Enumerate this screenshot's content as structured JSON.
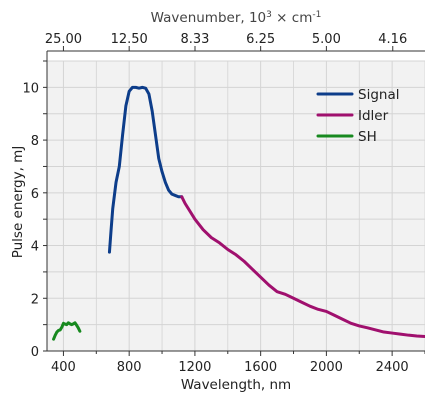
{
  "chart_data": {
    "type": "line",
    "xlabel": "Wavelength, nm",
    "ylabel": "Pulse energy, mJ",
    "top_axis_label": {
      "prefix": "Wavenumber, 10",
      "exponent": "3",
      "middle": " × cm",
      "unit_exponent": "-1"
    },
    "xlim": [
      300,
      2600
    ],
    "ylim": [
      0,
      11
    ],
    "x_ticks": [
      400,
      800,
      1200,
      1600,
      2000,
      2400
    ],
    "y_ticks": [
      0,
      2,
      4,
      6,
      8,
      10
    ],
    "top_ticks": [
      "25.00",
      "12.50",
      "8.33",
      "6.25",
      "5.00",
      "4.16"
    ],
    "grid": true,
    "legend_position": "top-right",
    "series": [
      {
        "name": "Signal",
        "color": "#0d3d8a",
        "x": [
          680,
          690,
          700,
          720,
          740,
          760,
          780,
          800,
          820,
          840,
          860,
          880,
          900,
          920,
          940,
          960,
          980,
          1000,
          1020,
          1040,
          1060,
          1080,
          1100,
          1120
        ],
        "y": [
          3.75,
          4.6,
          5.4,
          6.4,
          7.0,
          8.2,
          9.3,
          9.85,
          10.0,
          10.0,
          9.97,
          10.0,
          9.97,
          9.75,
          9.1,
          8.2,
          7.3,
          6.8,
          6.4,
          6.1,
          5.95,
          5.9,
          5.85,
          5.85
        ]
      },
      {
        "name": "Idler",
        "color": "#a0106e",
        "x": [
          1120,
          1140,
          1160,
          1200,
          1250,
          1300,
          1350,
          1400,
          1450,
          1500,
          1550,
          1600,
          1650,
          1700,
          1750,
          1800,
          1850,
          1900,
          1950,
          2000,
          2050,
          2100,
          2150,
          2200,
          2250,
          2300,
          2350,
          2400,
          2450,
          2500,
          2550,
          2600
        ],
        "y": [
          5.85,
          5.6,
          5.4,
          5.0,
          4.6,
          4.3,
          4.1,
          3.85,
          3.65,
          3.4,
          3.1,
          2.8,
          2.5,
          2.25,
          2.15,
          2.0,
          1.85,
          1.7,
          1.58,
          1.5,
          1.35,
          1.2,
          1.05,
          0.95,
          0.88,
          0.8,
          0.72,
          0.68,
          0.64,
          0.6,
          0.57,
          0.55
        ]
      },
      {
        "name": "SH",
        "color": "#17891f",
        "x": [
          340,
          350,
          360,
          370,
          380,
          390,
          400,
          410,
          420,
          430,
          440,
          450,
          460,
          470,
          480,
          490,
          500
        ],
        "y": [
          0.45,
          0.6,
          0.72,
          0.78,
          0.8,
          0.9,
          1.05,
          1.02,
          1.0,
          1.07,
          1.03,
          1.0,
          1.03,
          1.07,
          0.98,
          0.88,
          0.75
        ]
      }
    ]
  }
}
